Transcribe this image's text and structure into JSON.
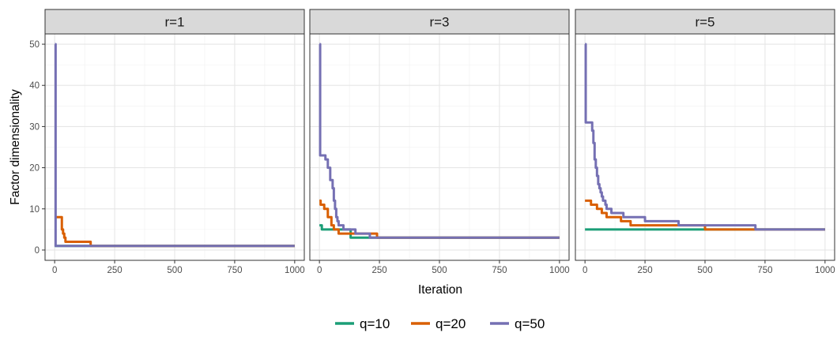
{
  "chart_data": {
    "type": "line",
    "xlabel": "Iteration",
    "ylabel": "Factor dimensionality",
    "xlim": [
      -40,
      1040
    ],
    "ylim": [
      -2.5,
      52.5
    ],
    "x_ticks": [
      0,
      250,
      500,
      750,
      1000
    ],
    "y_ticks": [
      0,
      10,
      20,
      30,
      40,
      50
    ],
    "grid": true,
    "legend_position": "bottom",
    "legend": [
      {
        "name": "q=10",
        "color": "#1b9e77"
      },
      {
        "name": "q=20",
        "color": "#d95f02"
      },
      {
        "name": "q=50",
        "color": "#7570b3"
      }
    ],
    "panels": [
      {
        "title": "r=1",
        "series": [
          {
            "name": "q=10",
            "x": [
              0,
              5,
              1000
            ],
            "y": [
              1,
              1,
              1
            ]
          },
          {
            "name": "q=20",
            "x": [
              0,
              5,
              20,
              30,
              35,
              40,
              45,
              50,
              150,
              150,
              1000
            ],
            "y": [
              8,
              8,
              8,
              5,
              4,
              3,
              2,
              2,
              2,
              1,
              1
            ]
          },
          {
            "name": "q=50",
            "x": [
              1,
              3,
              4,
              1000
            ],
            "y": [
              50,
              50,
              1,
              1
            ]
          }
        ]
      },
      {
        "title": "r=3",
        "series": [
          {
            "name": "q=10",
            "x": [
              0,
              10,
              130,
              200,
              1000
            ],
            "y": [
              6,
              5,
              3,
              3,
              3
            ]
          },
          {
            "name": "q=20",
            "x": [
              0,
              5,
              10,
              20,
              35,
              50,
              60,
              70,
              80,
              120,
              200,
              240,
              240,
              1000
            ],
            "y": [
              12,
              11,
              11,
              10,
              8,
              6,
              5,
              5,
              4,
              4,
              4,
              4,
              3,
              3
            ]
          },
          {
            "name": "q=50",
            "x": [
              0,
              2,
              3,
              10,
              25,
              35,
              45,
              55,
              60,
              65,
              70,
              75,
              80,
              90,
              100,
              110,
              150,
              210,
              1000
            ],
            "y": [
              50,
              50,
              23,
              23,
              22,
              20,
              17,
              15,
              12,
              10,
              8,
              7,
              6,
              6,
              5,
              5,
              4,
              3,
              3
            ]
          }
        ]
      },
      {
        "title": "r=5",
        "series": [
          {
            "name": "q=10",
            "x": [
              0,
              1000
            ],
            "y": [
              5,
              5
            ]
          },
          {
            "name": "q=20",
            "x": [
              0,
              10,
              25,
              50,
              60,
              70,
              90,
              100,
              150,
              190,
              250,
              500,
              700,
              1000
            ],
            "y": [
              12,
              12,
              11,
              10,
              10,
              9,
              8,
              8,
              7,
              6,
              6,
              5,
              5,
              5
            ]
          },
          {
            "name": "q=50",
            "x": [
              0,
              2,
              3,
              25,
              30,
              35,
              40,
              45,
              50,
              55,
              60,
              65,
              70,
              75,
              85,
              90,
              110,
              160,
              250,
              390,
              500,
              710,
              1000
            ],
            "y": [
              50,
              50,
              31,
              31,
              29,
              26,
              22,
              20,
              18,
              16,
              15,
              14,
              13,
              12,
              11,
              10,
              9,
              8,
              7,
              6,
              6,
              5,
              5
            ]
          }
        ]
      }
    ]
  }
}
